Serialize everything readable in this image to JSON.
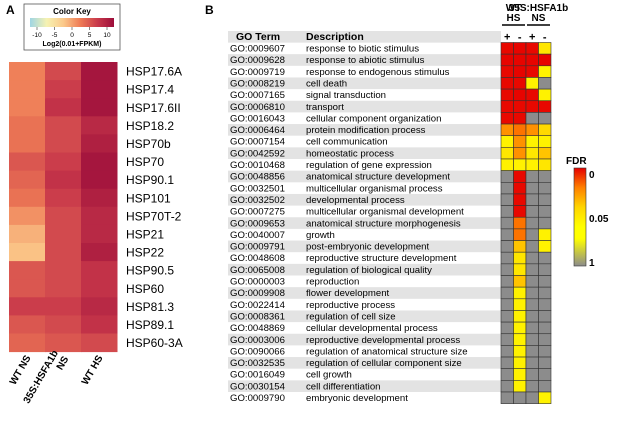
{
  "colors": {
    "gray": "#8c8c8c",
    "row_shade": "#e3e3e3",
    "heat_scale": [
      "#9fd5e3",
      "#f6f2b2",
      "#fbc889",
      "#ee7a55",
      "#c93a4b",
      "#9c0d3a"
    ],
    "fdr_scale": [
      "#e60000",
      "#ff8000",
      "#ffd500",
      "#ffff00"
    ]
  },
  "chart_data": [
    {
      "type": "heatmap",
      "panel_label": "A",
      "color_key": {
        "title": "Color Key",
        "label": "Log2(0.01+FPKM)",
        "ticks": [
          "-10",
          "-5",
          "0",
          "5",
          "10"
        ],
        "range": [
          -12,
          12
        ]
      },
      "columns": [
        "WT NS",
        "35S:HSFA1b NS",
        "WT HS"
      ],
      "column_labels": [
        [
          "WT NS"
        ],
        [
          "35S:HSFA1b",
          "NS"
        ],
        [
          "WT HS"
        ]
      ],
      "rows": [
        "HSP17.6A",
        "HSP17.4",
        "HSP17.6II",
        "HSP18.2",
        "HSP70b",
        "HSP70",
        "HSP90.1",
        "HSP101",
        "HSP70T-2",
        "HSP21",
        "HSP22",
        "HSP90.5",
        "HSP60",
        "HSP81.3",
        "HSP89.1",
        "HSP60-3A"
      ],
      "values": [
        [
          2,
          6,
          11
        ],
        [
          2,
          7,
          11
        ],
        [
          2,
          8,
          11
        ],
        [
          3,
          6,
          9
        ],
        [
          3,
          6,
          10
        ],
        [
          5,
          7,
          11
        ],
        [
          4,
          8,
          11
        ],
        [
          3,
          7,
          10
        ],
        [
          1,
          6,
          9
        ],
        [
          -1,
          6,
          9
        ],
        [
          -2,
          6,
          10
        ],
        [
          5,
          6,
          8
        ],
        [
          5,
          6,
          8
        ],
        [
          7,
          7,
          9
        ],
        [
          5,
          6,
          8
        ],
        [
          4,
          5,
          6
        ]
      ]
    },
    {
      "type": "table",
      "panel_label": "B",
      "headers": {
        "term": "GO Term",
        "description": "Description"
      },
      "groups": [
        {
          "label": [
            "WT",
            "HS"
          ],
          "columns": [
            "+",
            "-"
          ]
        },
        {
          "label": [
            "35S:HSFA1b",
            "NS"
          ],
          "columns": [
            "+",
            "-"
          ]
        }
      ],
      "legend": {
        "title": "FDR",
        "ticks": [
          "0",
          "0.05",
          "1"
        ],
        "range": [
          0,
          1
        ]
      },
      "rows": [
        {
          "term": "GO:0009607",
          "description": "response to biotic stimulus",
          "values": [
            0.001,
            0.0005,
            0.001,
            0.04
          ]
        },
        {
          "term": "GO:0009628",
          "description": "response to abiotic stimulus",
          "values": [
            0.0005,
            0.0005,
            0.0005,
            0.0005
          ]
        },
        {
          "term": "GO:0009719",
          "description": "response to endogenous stimulus",
          "values": [
            0.001,
            0.0005,
            0.001,
            0.045
          ]
        },
        {
          "term": "GO:0008219",
          "description": "cell death",
          "values": [
            0.001,
            0.001,
            0.045,
            1
          ]
        },
        {
          "term": "GO:0007165",
          "description": "signal transduction",
          "values": [
            0.001,
            0.0005,
            0.001,
            0.045
          ]
        },
        {
          "term": "GO:0006810",
          "description": "transport",
          "values": [
            0.001,
            0.001,
            0.001,
            0.001
          ]
        },
        {
          "term": "GO:0016043",
          "description": "cellular component organization",
          "values": [
            0.001,
            0.001,
            1,
            1
          ]
        },
        {
          "term": "GO:0006464",
          "description": "protein modification process",
          "values": [
            0.02,
            0.015,
            0.02,
            0.035
          ]
        },
        {
          "term": "GO:0007154",
          "description": "cell communication",
          "values": [
            0.045,
            0.02,
            0.045,
            0.045
          ]
        },
        {
          "term": "GO:0042592",
          "description": "homeostatic process",
          "values": [
            0.04,
            0.02,
            0.04,
            0.03
          ]
        },
        {
          "term": "GO:0010468",
          "description": "regulation of gene expression",
          "values": [
            0.045,
            0.045,
            0.045,
            0.04
          ]
        },
        {
          "term": "GO:0048856",
          "description": "anatomical structure development",
          "values": [
            1,
            0.001,
            1,
            1
          ]
        },
        {
          "term": "GO:0032501",
          "description": "multicellular organismal process",
          "values": [
            1,
            0.001,
            1,
            1
          ]
        },
        {
          "term": "GO:0032502",
          "description": "developmental process",
          "values": [
            1,
            0.001,
            1,
            1
          ]
        },
        {
          "term": "GO:0007275",
          "description": "multicellular organismal development",
          "values": [
            1,
            0.001,
            1,
            1
          ]
        },
        {
          "term": "GO:0009653",
          "description": "anatomical structure morphogenesis",
          "values": [
            1,
            0.015,
            1,
            1
          ]
        },
        {
          "term": "GO:0040007",
          "description": "growth",
          "values": [
            1,
            0.015,
            1,
            0.045
          ]
        },
        {
          "term": "GO:0009791",
          "description": "post-embryonic development",
          "values": [
            1,
            0.03,
            1,
            0.045
          ]
        },
        {
          "term": "GO:0048608",
          "description": "reproductive structure development",
          "values": [
            1,
            0.04,
            1,
            1
          ]
        },
        {
          "term": "GO:0065008",
          "description": "regulation of biological quality",
          "values": [
            1,
            0.04,
            1,
            1
          ]
        },
        {
          "term": "GO:0000003",
          "description": "reproduction",
          "values": [
            1,
            0.03,
            1,
            1
          ]
        },
        {
          "term": "GO:0009908",
          "description": "flower development",
          "values": [
            1,
            0.045,
            1,
            1
          ]
        },
        {
          "term": "GO:0022414",
          "description": "reproductive process",
          "values": [
            1,
            0.045,
            1,
            1
          ]
        },
        {
          "term": "GO:0008361",
          "description": "regulation of cell size",
          "values": [
            1,
            0.045,
            1,
            1
          ]
        },
        {
          "term": "GO:0048869",
          "description": "cellular developmental process",
          "values": [
            1,
            0.045,
            1,
            1
          ]
        },
        {
          "term": "GO:0003006",
          "description": "reproductive developmental process",
          "values": [
            1,
            0.045,
            1,
            1
          ]
        },
        {
          "term": "GO:0090066",
          "description": "regulation of anatomical structure size",
          "values": [
            1,
            0.045,
            1,
            1
          ]
        },
        {
          "term": "GO:0032535",
          "description": "regulation of cellular component size",
          "values": [
            1,
            0.045,
            1,
            1
          ]
        },
        {
          "term": "GO:0016049",
          "description": "cell growth",
          "values": [
            1,
            0.045,
            1,
            1
          ]
        },
        {
          "term": "GO:0030154",
          "description": "cell differentiation",
          "values": [
            1,
            0.045,
            1,
            1
          ]
        },
        {
          "term": "GO:0009790",
          "description": "embryonic development",
          "values": [
            1,
            1,
            1,
            0.045
          ]
        }
      ]
    }
  ]
}
